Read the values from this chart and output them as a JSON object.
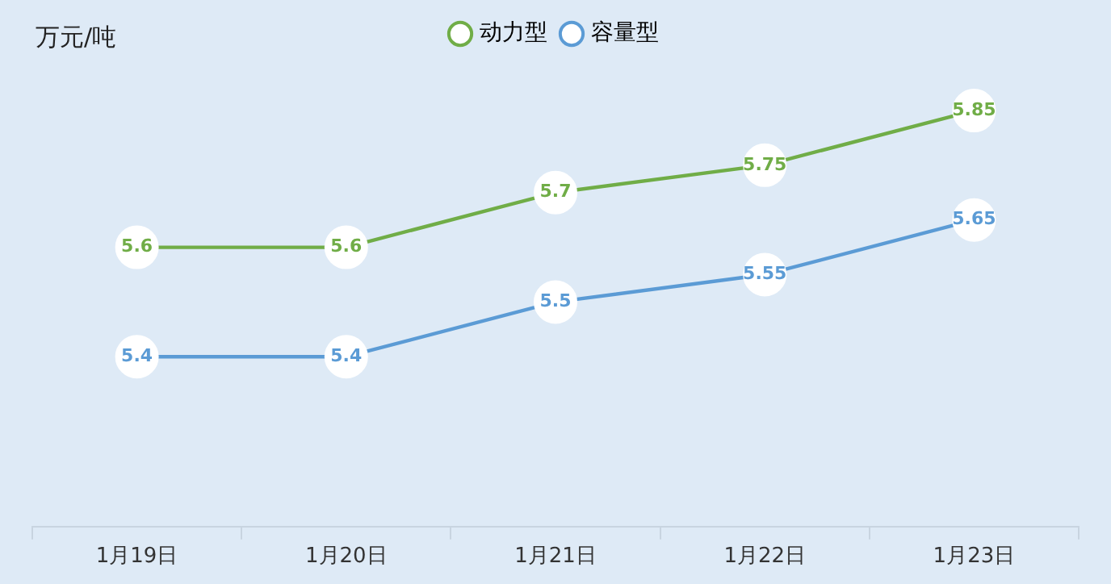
{
  "chart_data": {
    "type": "line",
    "ylabel": "万元/吨",
    "categories": [
      "1月19日",
      "1月20日",
      "1月21日",
      "1月22日",
      "1月23日"
    ],
    "series": [
      {
        "name": "动力型",
        "color": "#70ad47",
        "values": [
          5.6,
          5.6,
          5.7,
          5.75,
          5.85
        ]
      },
      {
        "name": "容量型",
        "color": "#5b9bd5",
        "values": [
          5.4,
          5.4,
          5.5,
          5.55,
          5.65
        ]
      }
    ],
    "data_labels": true,
    "marker": "circle",
    "legend": "top"
  }
}
